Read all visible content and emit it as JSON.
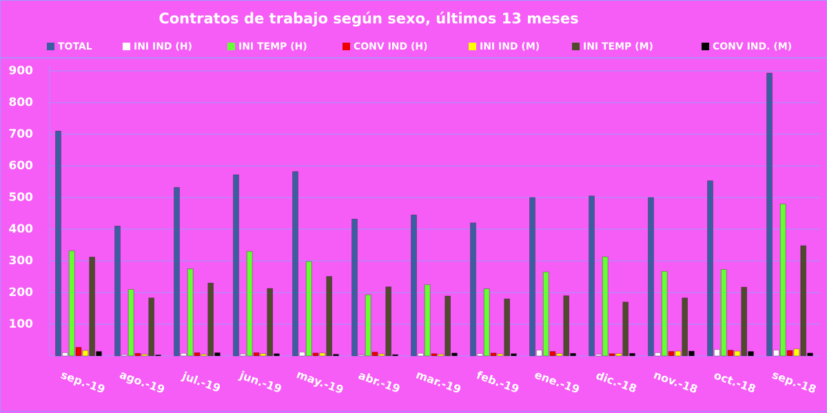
{
  "chart_data": {
    "type": "bar",
    "title": "Contratos de trabajo según sexo, últimos 13 meses",
    "categories": [
      "sep.-19",
      "ago.-19",
      "jul.-19",
      "jun.-19",
      "may.-19",
      "abr.-19",
      "mar.-19",
      "feb.-19",
      "ene.-19",
      "dic.-18",
      "nov.-18",
      "oct.-18",
      "sep.-18"
    ],
    "series": [
      {
        "name": "TOTAL",
        "color": "#3a5fa0",
        "values": [
          710,
          410,
          532,
          572,
          582,
          432,
          445,
          420,
          500,
          505,
          500,
          553,
          893
        ]
      },
      {
        "name": "INI IND (H)",
        "color": "#ffffff",
        "values": [
          10,
          4,
          8,
          6,
          12,
          3,
          8,
          7,
          18,
          5,
          10,
          20,
          18
        ]
      },
      {
        "name": "INI TEMP (H)",
        "color": "#66ff33",
        "values": [
          332,
          210,
          275,
          330,
          298,
          193,
          225,
          212,
          265,
          313,
          267,
          273,
          480
        ]
      },
      {
        "name": "CONV IND (H)",
        "color": "#ee0000",
        "values": [
          27,
          8,
          10,
          10,
          9,
          12,
          7,
          9,
          14,
          7,
          14,
          18,
          17
        ]
      },
      {
        "name": "INI IND (M)",
        "color": "#ffff00",
        "values": [
          17,
          5,
          5,
          7,
          9,
          6,
          5,
          6,
          7,
          7,
          15,
          15,
          22
        ]
      },
      {
        "name": "INI TEMP  (M)",
        "color": "#4f4a2c",
        "values": [
          312,
          183,
          230,
          213,
          251,
          218,
          189,
          180,
          190,
          170,
          183,
          217,
          348
        ]
      },
      {
        "name": "CONV IND.  (M)",
        "color": "#000000",
        "values": [
          14,
          3,
          10,
          7,
          5,
          4,
          9,
          7,
          8,
          8,
          15,
          14,
          9
        ]
      }
    ],
    "ylim": [
      0,
      900
    ],
    "yticks": [
      100,
      200,
      300,
      400,
      500,
      600,
      700,
      800,
      900
    ],
    "grid": true,
    "legend": "top"
  }
}
